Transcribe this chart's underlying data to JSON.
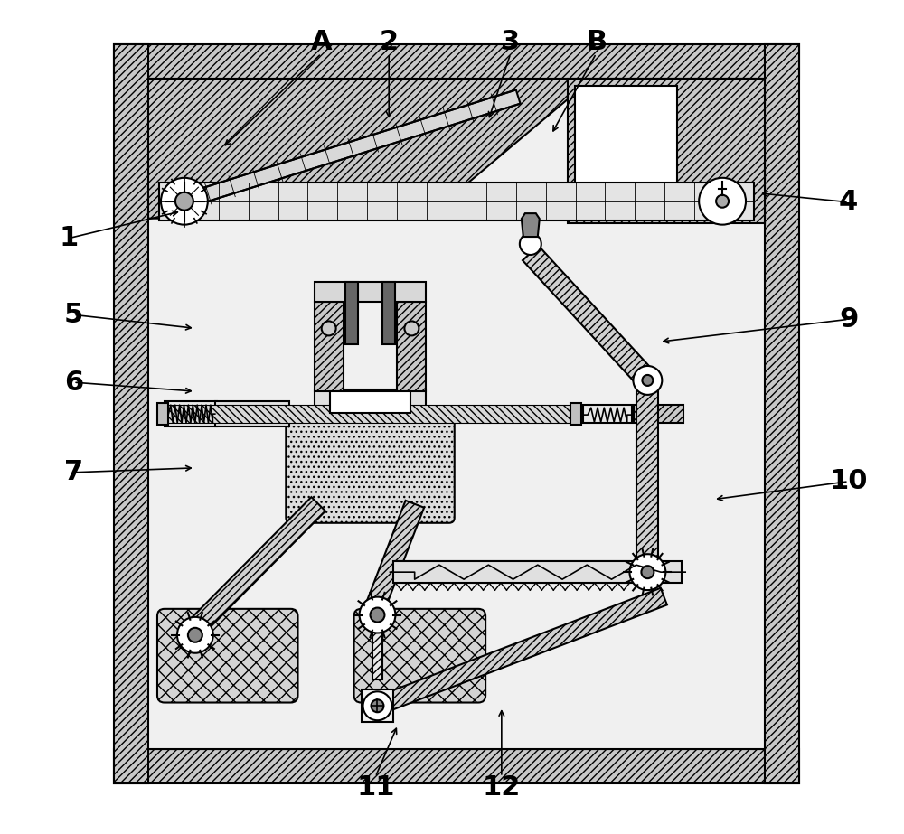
{
  "bg_color": "#ffffff",
  "lc": "#000000",
  "hatch_fc": "#c8c8c8",
  "inner_fc": "#f5f5f5"
}
